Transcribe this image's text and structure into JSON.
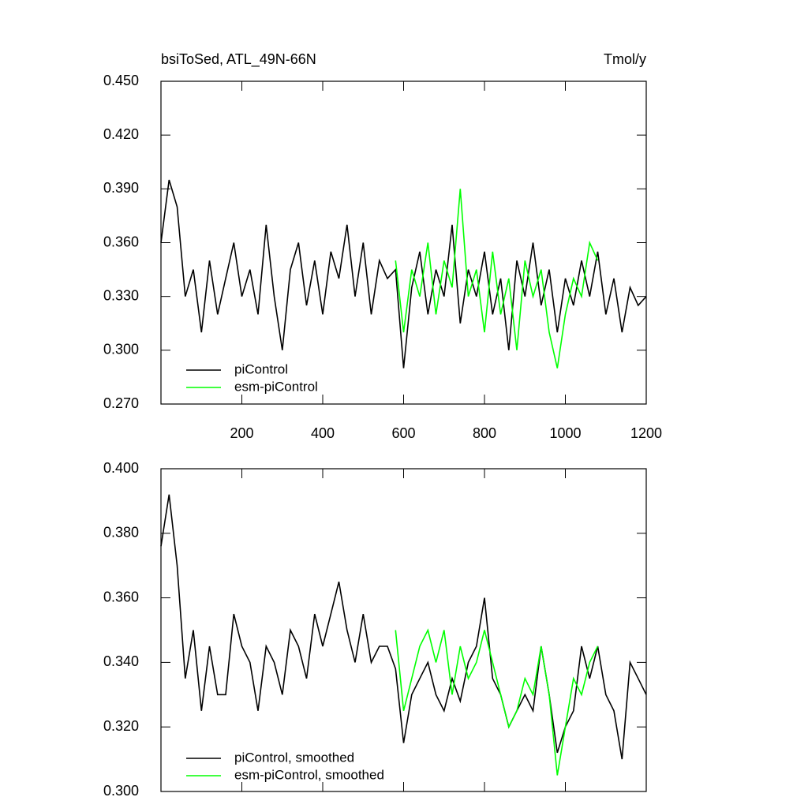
{
  "chart_data": [
    {
      "type": "line",
      "title": "bsiToSed, ATL_49N-66N",
      "units": "Tmol/y",
      "xlim": [
        0,
        1200
      ],
      "xticks": [
        200,
        400,
        600,
        800,
        1000,
        1200
      ],
      "ylim": [
        0.27,
        0.45
      ],
      "yticks": [
        {
          "value": 0.27,
          "label": "0.270"
        },
        {
          "value": 0.3,
          "label": "0.300"
        },
        {
          "value": 0.33,
          "label": "0.330"
        },
        {
          "value": 0.36,
          "label": "0.360"
        },
        {
          "value": 0.39,
          "label": "0.390"
        },
        {
          "value": 0.42,
          "label": "0.420"
        },
        {
          "value": 0.45,
          "label": "0.450"
        }
      ],
      "series": [
        {
          "name": "piControl",
          "color": "#000000",
          "x": [
            0,
            20,
            40,
            60,
            80,
            100,
            120,
            140,
            160,
            180,
            200,
            220,
            240,
            260,
            280,
            300,
            320,
            340,
            360,
            380,
            400,
            420,
            440,
            460,
            480,
            500,
            520,
            540,
            560,
            580,
            600,
            620,
            640,
            660,
            680,
            700,
            720,
            740,
            760,
            780,
            800,
            820,
            840,
            860,
            880,
            900,
            920,
            940,
            960,
            980,
            1000,
            1020,
            1040,
            1060,
            1080,
            1100,
            1120,
            1140,
            1160,
            1180,
            1200
          ],
          "values": [
            0.36,
            0.395,
            0.38,
            0.33,
            0.345,
            0.31,
            0.35,
            0.32,
            0.34,
            0.36,
            0.33,
            0.345,
            0.32,
            0.37,
            0.33,
            0.3,
            0.345,
            0.36,
            0.325,
            0.35,
            0.32,
            0.355,
            0.34,
            0.37,
            0.33,
            0.36,
            0.32,
            0.35,
            0.34,
            0.345,
            0.29,
            0.335,
            0.355,
            0.32,
            0.345,
            0.33,
            0.37,
            0.315,
            0.345,
            0.33,
            0.355,
            0.32,
            0.34,
            0.3,
            0.35,
            0.33,
            0.36,
            0.325,
            0.345,
            0.31,
            0.34,
            0.325,
            0.35,
            0.33,
            0.355,
            0.32,
            0.34,
            0.31,
            0.335,
            0.325,
            0.33
          ]
        },
        {
          "name": "esm-piControl",
          "color": "#00ff00",
          "x": [
            580,
            600,
            620,
            640,
            660,
            680,
            700,
            720,
            740,
            760,
            780,
            800,
            820,
            840,
            860,
            880,
            900,
            920,
            940,
            960,
            980,
            1000,
            1020,
            1040,
            1060,
            1080
          ],
          "values": [
            0.35,
            0.31,
            0.345,
            0.33,
            0.36,
            0.32,
            0.35,
            0.335,
            0.39,
            0.33,
            0.345,
            0.31,
            0.355,
            0.32,
            0.34,
            0.3,
            0.35,
            0.33,
            0.345,
            0.31,
            0.29,
            0.32,
            0.34,
            0.33,
            0.36,
            0.35
          ]
        }
      ]
    },
    {
      "type": "line",
      "xlim": [
        0,
        1200
      ],
      "ylim": [
        0.3,
        0.4
      ],
      "yticks": [
        {
          "value": 0.3,
          "label": "0.300"
        },
        {
          "value": 0.32,
          "label": "0.320"
        },
        {
          "value": 0.34,
          "label": "0.340"
        },
        {
          "value": 0.36,
          "label": "0.360"
        },
        {
          "value": 0.38,
          "label": "0.380"
        },
        {
          "value": 0.4,
          "label": "0.400"
        }
      ],
      "series": [
        {
          "name": "piControl, smoothed",
          "color": "#000000",
          "x": [
            0,
            20,
            40,
            60,
            80,
            100,
            120,
            140,
            160,
            180,
            200,
            220,
            240,
            260,
            280,
            300,
            320,
            340,
            360,
            380,
            400,
            420,
            440,
            460,
            480,
            500,
            520,
            540,
            560,
            580,
            600,
            620,
            640,
            660,
            680,
            700,
            720,
            740,
            760,
            780,
            800,
            820,
            840,
            860,
            880,
            900,
            920,
            940,
            960,
            980,
            1000,
            1020,
            1040,
            1060,
            1080,
            1100,
            1120,
            1140,
            1160,
            1180,
            1200
          ],
          "values": [
            0.376,
            0.392,
            0.37,
            0.335,
            0.35,
            0.325,
            0.345,
            0.33,
            0.33,
            0.355,
            0.345,
            0.34,
            0.325,
            0.345,
            0.34,
            0.33,
            0.35,
            0.345,
            0.335,
            0.355,
            0.345,
            0.355,
            0.365,
            0.35,
            0.34,
            0.355,
            0.34,
            0.345,
            0.345,
            0.338,
            0.315,
            0.33,
            0.335,
            0.34,
            0.33,
            0.325,
            0.335,
            0.328,
            0.34,
            0.345,
            0.36,
            0.335,
            0.33,
            0.32,
            0.325,
            0.33,
            0.325,
            0.345,
            0.33,
            0.312,
            0.32,
            0.325,
            0.345,
            0.335,
            0.345,
            0.33,
            0.325,
            0.31,
            0.34,
            0.335,
            0.33
          ]
        },
        {
          "name": "esm-piControl, smoothed",
          "color": "#00ff00",
          "x": [
            580,
            600,
            620,
            640,
            660,
            680,
            700,
            720,
            740,
            760,
            780,
            800,
            820,
            840,
            860,
            880,
            900,
            920,
            940,
            960,
            980,
            1000,
            1020,
            1040,
            1060,
            1080
          ],
          "values": [
            0.35,
            0.325,
            0.335,
            0.345,
            0.35,
            0.34,
            0.35,
            0.33,
            0.345,
            0.335,
            0.34,
            0.35,
            0.34,
            0.33,
            0.32,
            0.325,
            0.335,
            0.33,
            0.345,
            0.33,
            0.305,
            0.32,
            0.335,
            0.33,
            0.34,
            0.345
          ]
        }
      ]
    }
  ]
}
